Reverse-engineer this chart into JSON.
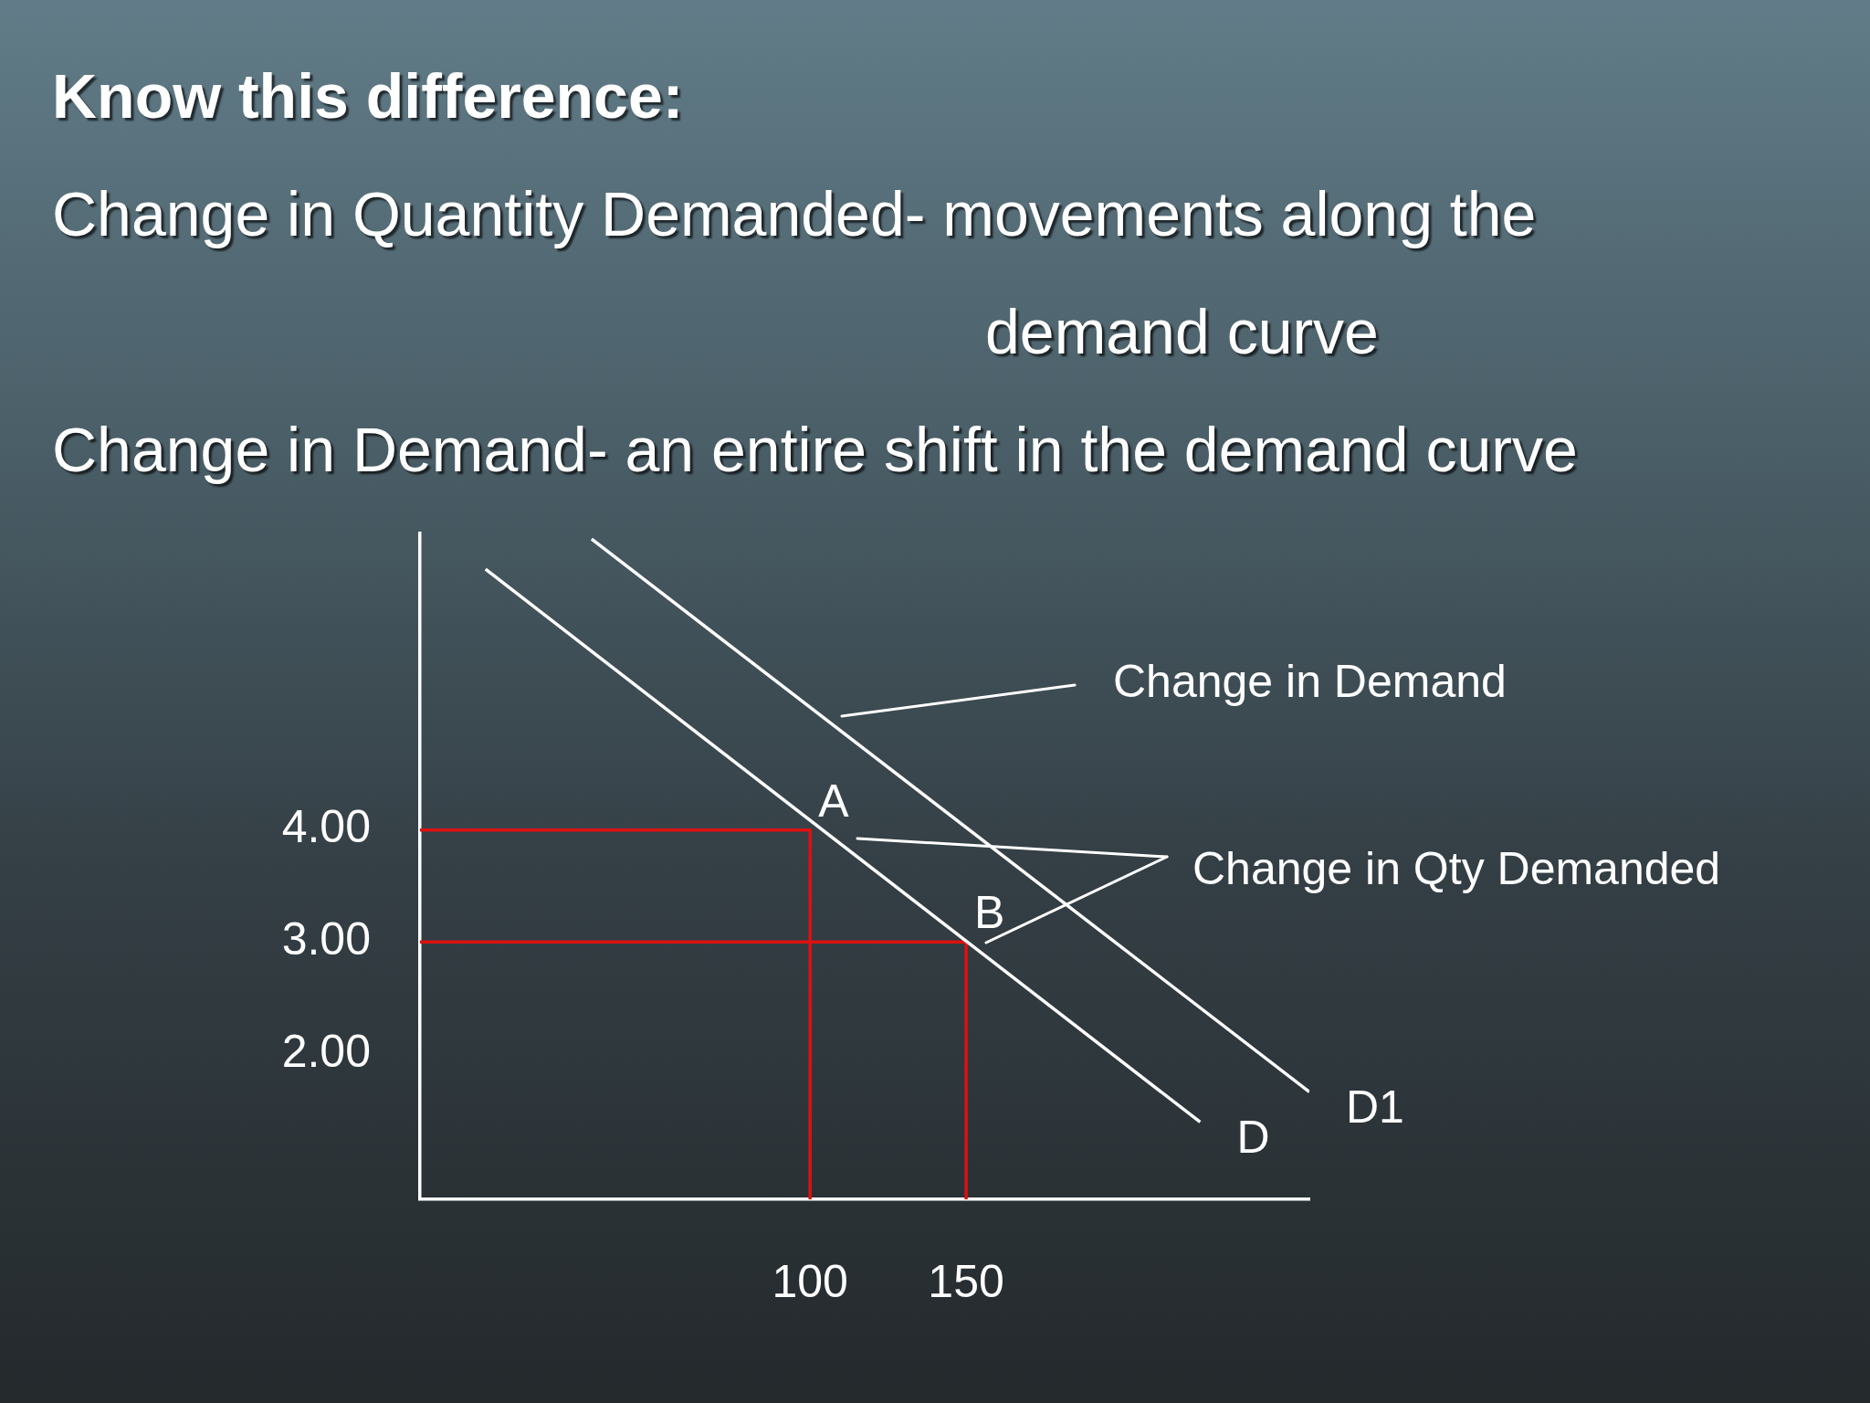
{
  "chart_data": {
    "type": "line",
    "title": "Know this difference:",
    "subtitle": "Change in Quantity Demanded- movements along the demand curve\nChange in Demand- an entire shift in the demand curve",
    "xlim": [
      -25,
      260
    ],
    "xticks": [
      100,
      150
    ],
    "ylim": [
      0.7,
      6.65
    ],
    "yticks": [
      {
        "value": 4,
        "label": "4.00"
      },
      {
        "value": 3,
        "label": "3.00"
      },
      {
        "value": 2,
        "label": "2.00"
      }
    ],
    "series": [
      {
        "name": "D",
        "color": "#ffffff",
        "x": [
          -4,
          225
        ],
        "values": [
          6.33,
          1.39
        ]
      },
      {
        "name": "D1",
        "color": "#ffffff",
        "x": [
          30,
          260
        ],
        "values": [
          6.6,
          1.66
        ]
      },
      {
        "color": "#dd1111",
        "x": [
          -25,
          100,
          100
        ],
        "values": [
          4,
          4,
          0.7
        ]
      },
      {
        "color": "#dd1111",
        "x": [
          -25,
          150,
          150
        ],
        "values": [
          3,
          3,
          0.7
        ]
      }
    ],
    "annotations": [
      "Change in Demand",
      "Change in Qty Demanded",
      {
        "text": "A",
        "x": 100,
        "y": 4
      },
      {
        "text": "B",
        "x": 150,
        "y": 3
      }
    ],
    "grid": false,
    "legend": false,
    "marker": "none",
    "line_style": "solid"
  }
}
